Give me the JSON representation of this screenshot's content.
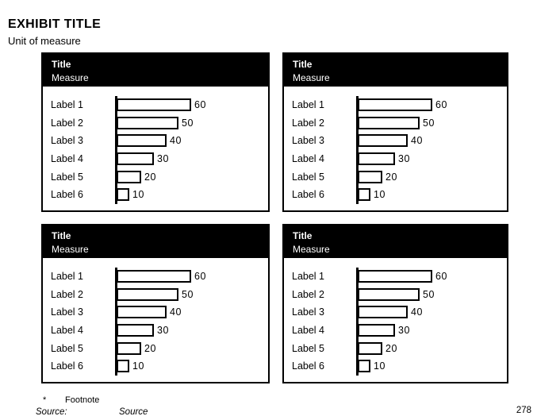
{
  "slide": {
    "title": "EXHIBIT TITLE",
    "subtitle": "Unit of measure",
    "page_number": "278"
  },
  "panels": [
    {
      "title": "Title",
      "measure": "Measure"
    },
    {
      "title": "Title",
      "measure": "Measure"
    },
    {
      "title": "Title",
      "measure": "Measure"
    },
    {
      "title": "Title",
      "measure": "Measure"
    }
  ],
  "chart_data": [
    {
      "type": "bar",
      "orientation": "horizontal",
      "title": "Title",
      "ylabel": "Measure",
      "categories": [
        "Label 1",
        "Label 2",
        "Label 3",
        "Label 4",
        "Label 5",
        "Label 6"
      ],
      "values": [
        60,
        50,
        40,
        30,
        20,
        10
      ],
      "xlim": [
        0,
        60
      ],
      "grid": false,
      "legend": false,
      "bar_fill": "#ffffff",
      "bar_stroke": "#000000"
    },
    {
      "type": "bar",
      "orientation": "horizontal",
      "title": "Title",
      "ylabel": "Measure",
      "categories": [
        "Label 1",
        "Label 2",
        "Label 3",
        "Label 4",
        "Label 5",
        "Label 6"
      ],
      "values": [
        60,
        50,
        40,
        30,
        20,
        10
      ],
      "xlim": [
        0,
        60
      ],
      "grid": false,
      "legend": false,
      "bar_fill": "#ffffff",
      "bar_stroke": "#000000"
    },
    {
      "type": "bar",
      "orientation": "horizontal",
      "title": "Title",
      "ylabel": "Measure",
      "categories": [
        "Label 1",
        "Label 2",
        "Label 3",
        "Label 4",
        "Label 5",
        "Label 6"
      ],
      "values": [
        60,
        50,
        40,
        30,
        20,
        10
      ],
      "xlim": [
        0,
        60
      ],
      "grid": false,
      "legend": false,
      "bar_fill": "#ffffff",
      "bar_stroke": "#000000"
    },
    {
      "type": "bar",
      "orientation": "horizontal",
      "title": "Title",
      "ylabel": "Measure",
      "categories": [
        "Label 1",
        "Label 2",
        "Label 3",
        "Label 4",
        "Label 5",
        "Label 6"
      ],
      "values": [
        60,
        50,
        40,
        30,
        20,
        10
      ],
      "xlim": [
        0,
        60
      ],
      "grid": false,
      "legend": false,
      "bar_fill": "#ffffff",
      "bar_stroke": "#000000"
    }
  ],
  "footer": {
    "footnote_marker": "*",
    "footnote": "Footnote",
    "source_label": "Source:",
    "source_value": "Source"
  },
  "colors": {
    "background": "#ffffff",
    "panel_header_bg": "#000000",
    "panel_header_text": "#ffffff",
    "bar_fill": "#ffffff",
    "bar_stroke": "#000000",
    "text": "#000000"
  }
}
